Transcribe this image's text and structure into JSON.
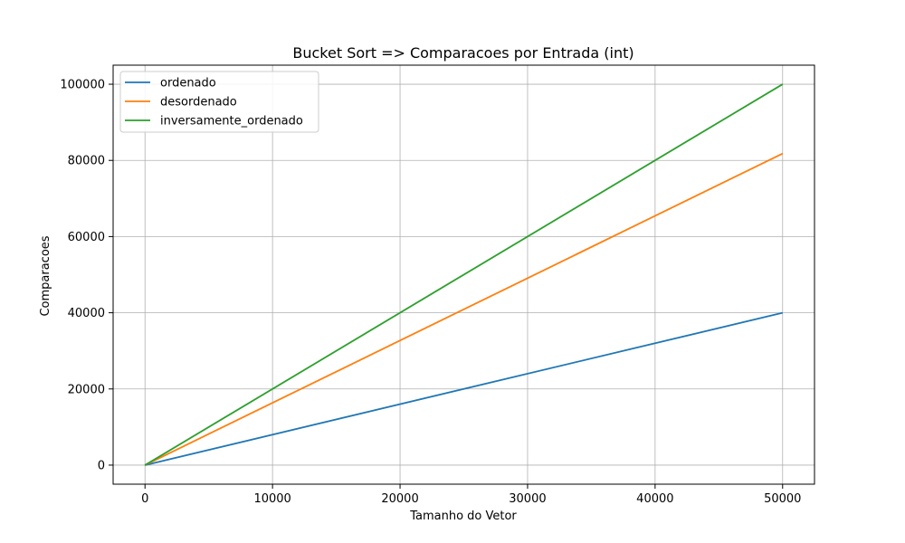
{
  "chart_data": {
    "type": "line",
    "title": "Bucket Sort => Comparacoes por Entrada (int)",
    "xlabel": "Tamanho do Vetor",
    "ylabel": "Comparacoes",
    "xlim": [
      -2500,
      52500
    ],
    "ylim": [
      -5000,
      105000
    ],
    "xticks": [
      0,
      10000,
      20000,
      30000,
      40000,
      50000
    ],
    "yticks": [
      0,
      20000,
      40000,
      60000,
      80000,
      100000
    ],
    "grid": true,
    "legend": "top-left",
    "series": [
      {
        "name": "ordenado",
        "color": "#1f77b4",
        "x": [
          0,
          50000
        ],
        "y": [
          0,
          40000
        ]
      },
      {
        "name": "desordenado",
        "color": "#ff7f0e",
        "x": [
          0,
          50000
        ],
        "y": [
          0,
          81800
        ]
      },
      {
        "name": "inversamente_ordenado",
        "color": "#2ca02c",
        "x": [
          0,
          50000
        ],
        "y": [
          0,
          100000
        ]
      }
    ]
  }
}
